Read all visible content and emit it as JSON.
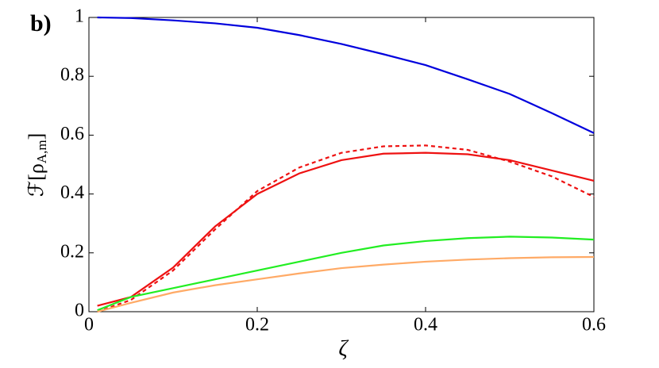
{
  "chart_data": {
    "type": "line",
    "panel_label": "b)",
    "xlabel": "ζ",
    "ylabel_parts": [
      "ℱ[ρ",
      "A,m",
      "]"
    ],
    "x": [
      0.01,
      0.05,
      0.1,
      0.15,
      0.2,
      0.25,
      0.3,
      0.35,
      0.4,
      0.45,
      0.5,
      0.55,
      0.6
    ],
    "series": [
      {
        "color": "#0000dd",
        "dashed": false,
        "values": [
          1.0,
          0.998,
          0.99,
          0.98,
          0.965,
          0.94,
          0.91,
          0.875,
          0.838,
          0.79,
          0.74,
          0.675,
          0.607
        ]
      },
      {
        "color": "#ee1111",
        "dashed": false,
        "values": [
          0.02,
          0.05,
          0.15,
          0.29,
          0.4,
          0.47,
          0.515,
          0.537,
          0.54,
          0.535,
          0.515,
          0.48,
          0.445
        ]
      },
      {
        "color": "#ee1111",
        "dashed": true,
        "values": [
          0.0,
          0.04,
          0.14,
          0.28,
          0.41,
          0.49,
          0.54,
          0.562,
          0.565,
          0.55,
          0.51,
          0.46,
          0.39
        ]
      },
      {
        "color": "#22ee22",
        "dashed": false,
        "values": [
          0.005,
          0.05,
          0.08,
          0.11,
          0.14,
          0.17,
          0.2,
          0.225,
          0.24,
          0.25,
          0.255,
          0.252,
          0.245
        ]
      },
      {
        "color": "#ffaa66",
        "dashed": false,
        "values": [
          0.0,
          0.03,
          0.065,
          0.09,
          0.11,
          0.13,
          0.148,
          0.16,
          0.17,
          0.177,
          0.182,
          0.185,
          0.186
        ]
      }
    ],
    "xlim": [
      0,
      0.6
    ],
    "ylim": [
      0,
      1
    ],
    "xticks": [
      0,
      0.2,
      0.4,
      0.6
    ],
    "yticks": [
      0,
      0.2,
      0.4,
      0.6,
      0.8,
      1
    ]
  }
}
